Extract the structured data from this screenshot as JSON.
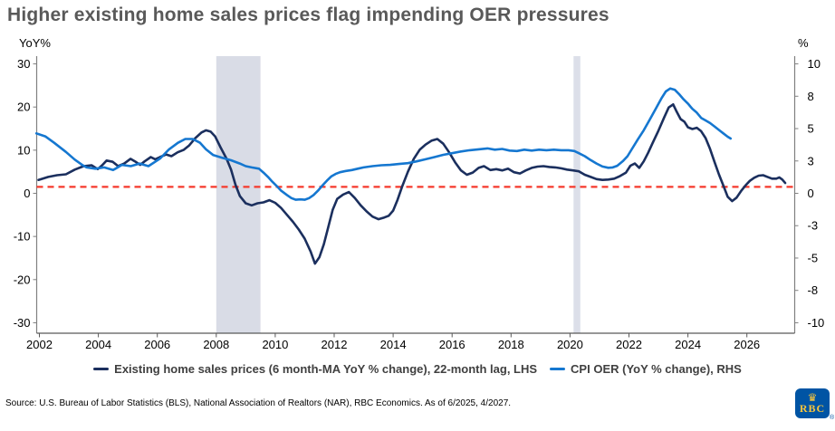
{
  "title": "Higher existing home sales prices flag impending OER pressures",
  "legend": [
    {
      "label": "Existing home sales prices (6 month-MA YoY % change), 22-month lag, LHS",
      "color": "#1b2f5e"
    },
    {
      "label": "CPI OER (YoY % change), RHS",
      "color": "#1577d0"
    }
  ],
  "source": "Source: U.S. Bureau of Labor Statistics (BLS), National Association of Realtors (NAR), RBC Economics. As of 6/2025, 4/2027.",
  "logo": {
    "crest_icon": "♛",
    "text": "RBC",
    "registered": "®"
  },
  "chart_data": {
    "type": "line",
    "title": "Higher existing home sales prices flag impending OER pressures",
    "grid": false,
    "x_axis": {
      "range": [
        2001.9,
        2027.5
      ],
      "tick_years": [
        2002,
        2004,
        2006,
        2008,
        2010,
        2012,
        2014,
        2016,
        2018,
        2020,
        2022,
        2024,
        2026
      ]
    },
    "left_axis": {
      "label": "YoY%",
      "range": [
        -30,
        30
      ],
      "ticks": [
        30,
        20,
        10,
        0,
        -10,
        -20,
        -30
      ]
    },
    "right_axis": {
      "label": "%",
      "range": [
        -10,
        10
      ],
      "tick_values": [
        10,
        7.5,
        5,
        2.5,
        0,
        -2.5,
        -5,
        -7.5,
        -10
      ],
      "tick_labels": [
        "10",
        "8",
        "5",
        "3",
        "0",
        "-3",
        "-5",
        "-8",
        "-10"
      ]
    },
    "reference_line": {
      "value_rhs": 0.5,
      "value_lhs": 1.5,
      "color": "#f5392c",
      "style": "dashed"
    },
    "recession_bands": [
      {
        "start": 2008.0,
        "end": 2009.5,
        "color": "#d9dce6"
      },
      {
        "start": 2020.12,
        "end": 2020.35,
        "color": "#dcdfe9"
      }
    ],
    "series": [
      {
        "name": "Existing home sales prices (6 month-MA YoY % change), 22-month lag, LHS",
        "axis": "left",
        "color": "#1b2f5e",
        "points": [
          [
            2001.97,
            3.1
          ],
          [
            2002.3,
            3.8
          ],
          [
            2002.6,
            4.2
          ],
          [
            2002.9,
            4.4
          ],
          [
            2003.2,
            5.5
          ],
          [
            2003.5,
            6.3
          ],
          [
            2003.77,
            6.5
          ],
          [
            2003.98,
            5.6
          ],
          [
            2004.13,
            6.5
          ],
          [
            2004.28,
            7.6
          ],
          [
            2004.49,
            7.3
          ],
          [
            2004.67,
            6.3
          ],
          [
            2004.88,
            6.9
          ],
          [
            2005.09,
            8.0
          ],
          [
            2005.24,
            7.4
          ],
          [
            2005.42,
            6.6
          ],
          [
            2005.57,
            7.4
          ],
          [
            2005.78,
            8.4
          ],
          [
            2005.93,
            7.9
          ],
          [
            2006.09,
            8.4
          ],
          [
            2006.3,
            9.0
          ],
          [
            2006.48,
            8.6
          ],
          [
            2006.69,
            9.5
          ],
          [
            2006.9,
            10.1
          ],
          [
            2007.08,
            11.1
          ],
          [
            2007.29,
            12.8
          ],
          [
            2007.5,
            14.1
          ],
          [
            2007.65,
            14.6
          ],
          [
            2007.81,
            14.3
          ],
          [
            2007.96,
            13.2
          ],
          [
            2008.14,
            10.7
          ],
          [
            2008.35,
            8.0
          ],
          [
            2008.5,
            5.5
          ],
          [
            2008.65,
            2.0
          ],
          [
            2008.8,
            -0.6
          ],
          [
            2009.0,
            -2.3
          ],
          [
            2009.2,
            -2.8
          ],
          [
            2009.4,
            -2.3
          ],
          [
            2009.6,
            -2.1
          ],
          [
            2009.8,
            -1.6
          ],
          [
            2010.0,
            -2.2
          ],
          [
            2010.2,
            -3.4
          ],
          [
            2010.4,
            -5.0
          ],
          [
            2010.6,
            -6.6
          ],
          [
            2010.8,
            -8.4
          ],
          [
            2011.0,
            -10.5
          ],
          [
            2011.2,
            -13.5
          ],
          [
            2011.35,
            -16.3
          ],
          [
            2011.5,
            -14.8
          ],
          [
            2011.65,
            -11.8
          ],
          [
            2011.8,
            -7.8
          ],
          [
            2011.95,
            -3.8
          ],
          [
            2012.1,
            -1.3
          ],
          [
            2012.3,
            -0.3
          ],
          [
            2012.5,
            0.3
          ],
          [
            2012.7,
            -1.1
          ],
          [
            2012.9,
            -2.8
          ],
          [
            2013.1,
            -4.2
          ],
          [
            2013.3,
            -5.4
          ],
          [
            2013.5,
            -6.0
          ],
          [
            2013.7,
            -5.6
          ],
          [
            2013.85,
            -5.2
          ],
          [
            2014.0,
            -4.0
          ],
          [
            2014.15,
            -1.5
          ],
          [
            2014.3,
            1.5
          ],
          [
            2014.5,
            5.0
          ],
          [
            2014.7,
            8.0
          ],
          [
            2014.9,
            10.1
          ],
          [
            2015.1,
            11.3
          ],
          [
            2015.3,
            12.2
          ],
          [
            2015.5,
            12.6
          ],
          [
            2015.7,
            11.5
          ],
          [
            2015.9,
            9.5
          ],
          [
            2016.1,
            7.2
          ],
          [
            2016.3,
            5.3
          ],
          [
            2016.5,
            4.3
          ],
          [
            2016.7,
            4.8
          ],
          [
            2016.9,
            5.9
          ],
          [
            2017.08,
            6.3
          ],
          [
            2017.3,
            5.4
          ],
          [
            2017.5,
            5.6
          ],
          [
            2017.7,
            5.3
          ],
          [
            2017.9,
            5.7
          ],
          [
            2018.1,
            4.9
          ],
          [
            2018.3,
            4.6
          ],
          [
            2018.5,
            5.3
          ],
          [
            2018.7,
            5.9
          ],
          [
            2018.9,
            6.2
          ],
          [
            2019.1,
            6.3
          ],
          [
            2019.3,
            6.1
          ],
          [
            2019.5,
            6.0
          ],
          [
            2019.7,
            5.8
          ],
          [
            2019.9,
            5.5
          ],
          [
            2020.1,
            5.3
          ],
          [
            2020.3,
            5.1
          ],
          [
            2020.5,
            4.3
          ],
          [
            2020.7,
            3.8
          ],
          [
            2020.9,
            3.3
          ],
          [
            2021.1,
            3.1
          ],
          [
            2021.3,
            3.2
          ],
          [
            2021.5,
            3.4
          ],
          [
            2021.7,
            4.0
          ],
          [
            2021.9,
            4.8
          ],
          [
            2022.05,
            6.4
          ],
          [
            2022.2,
            6.9
          ],
          [
            2022.35,
            5.9
          ],
          [
            2022.5,
            7.4
          ],
          [
            2022.65,
            9.4
          ],
          [
            2022.8,
            11.6
          ],
          [
            2023.0,
            14.5
          ],
          [
            2023.2,
            17.7
          ],
          [
            2023.35,
            19.9
          ],
          [
            2023.5,
            20.6
          ],
          [
            2023.62,
            18.9
          ],
          [
            2023.75,
            17.2
          ],
          [
            2023.88,
            16.6
          ],
          [
            2024.0,
            15.3
          ],
          [
            2024.15,
            14.9
          ],
          [
            2024.3,
            15.2
          ],
          [
            2024.45,
            14.4
          ],
          [
            2024.6,
            12.8
          ],
          [
            2024.75,
            10.3
          ],
          [
            2024.9,
            7.3
          ],
          [
            2025.05,
            4.4
          ],
          [
            2025.2,
            1.8
          ],
          [
            2025.35,
            -0.8
          ],
          [
            2025.5,
            -1.8
          ],
          [
            2025.65,
            -1.0
          ],
          [
            2025.8,
            0.5
          ],
          [
            2025.95,
            1.8
          ],
          [
            2026.1,
            2.9
          ],
          [
            2026.25,
            3.6
          ],
          [
            2026.4,
            4.1
          ],
          [
            2026.55,
            4.2
          ],
          [
            2026.7,
            3.8
          ],
          [
            2026.85,
            3.4
          ],
          [
            2027.0,
            3.4
          ],
          [
            2027.1,
            3.7
          ],
          [
            2027.2,
            3.2
          ],
          [
            2027.3,
            2.4
          ]
        ]
      },
      {
        "name": "CPI OER (YoY % change), RHS",
        "axis": "right",
        "color": "#1577d0",
        "points": [
          [
            2001.9,
            4.63
          ],
          [
            2002.2,
            4.4
          ],
          [
            2002.5,
            3.9
          ],
          [
            2002.9,
            3.2
          ],
          [
            2003.2,
            2.6
          ],
          [
            2003.45,
            2.2
          ],
          [
            2003.6,
            2.0
          ],
          [
            2003.9,
            1.9
          ],
          [
            2004.2,
            2.0
          ],
          [
            2004.5,
            1.8
          ],
          [
            2004.8,
            2.2
          ],
          [
            2005.1,
            2.1
          ],
          [
            2005.4,
            2.3
          ],
          [
            2005.7,
            2.1
          ],
          [
            2006.1,
            2.7
          ],
          [
            2006.4,
            3.4
          ],
          [
            2006.7,
            3.9
          ],
          [
            2006.95,
            4.2
          ],
          [
            2007.2,
            4.2
          ],
          [
            2007.45,
            3.9
          ],
          [
            2007.65,
            3.4
          ],
          [
            2007.9,
            2.95
          ],
          [
            2008.2,
            2.75
          ],
          [
            2008.5,
            2.55
          ],
          [
            2008.8,
            2.3
          ],
          [
            2009.0,
            2.1
          ],
          [
            2009.2,
            2.0
          ],
          [
            2009.45,
            1.9
          ],
          [
            2009.6,
            1.6
          ],
          [
            2009.75,
            1.27
          ],
          [
            2009.9,
            0.9
          ],
          [
            2010.05,
            0.57
          ],
          [
            2010.2,
            0.2
          ],
          [
            2010.4,
            -0.13
          ],
          [
            2010.55,
            -0.37
          ],
          [
            2010.7,
            -0.5
          ],
          [
            2010.85,
            -0.47
          ],
          [
            2011.0,
            -0.5
          ],
          [
            2011.15,
            -0.37
          ],
          [
            2011.3,
            -0.13
          ],
          [
            2011.45,
            0.2
          ],
          [
            2011.6,
            0.6
          ],
          [
            2011.75,
            0.97
          ],
          [
            2011.9,
            1.3
          ],
          [
            2012.05,
            1.5
          ],
          [
            2012.2,
            1.63
          ],
          [
            2012.4,
            1.73
          ],
          [
            2012.6,
            1.8
          ],
          [
            2012.8,
            1.9
          ],
          [
            2013.0,
            2.0
          ],
          [
            2013.3,
            2.1
          ],
          [
            2013.6,
            2.17
          ],
          [
            2013.9,
            2.2
          ],
          [
            2014.2,
            2.27
          ],
          [
            2014.5,
            2.33
          ],
          [
            2014.8,
            2.47
          ],
          [
            2015.1,
            2.63
          ],
          [
            2015.4,
            2.8
          ],
          [
            2015.7,
            2.97
          ],
          [
            2016.0,
            3.1
          ],
          [
            2016.3,
            3.23
          ],
          [
            2016.6,
            3.33
          ],
          [
            2016.9,
            3.4
          ],
          [
            2017.2,
            3.47
          ],
          [
            2017.45,
            3.37
          ],
          [
            2017.7,
            3.43
          ],
          [
            2017.95,
            3.3
          ],
          [
            2018.2,
            3.27
          ],
          [
            2018.45,
            3.37
          ],
          [
            2018.7,
            3.3
          ],
          [
            2018.95,
            3.37
          ],
          [
            2019.2,
            3.33
          ],
          [
            2019.45,
            3.37
          ],
          [
            2019.7,
            3.33
          ],
          [
            2019.95,
            3.33
          ],
          [
            2020.15,
            3.27
          ],
          [
            2020.3,
            3.1
          ],
          [
            2020.5,
            2.87
          ],
          [
            2020.7,
            2.57
          ],
          [
            2020.9,
            2.3
          ],
          [
            2021.1,
            2.07
          ],
          [
            2021.3,
            1.97
          ],
          [
            2021.45,
            2.0
          ],
          [
            2021.6,
            2.13
          ],
          [
            2021.8,
            2.5
          ],
          [
            2021.95,
            2.87
          ],
          [
            2022.1,
            3.43
          ],
          [
            2022.3,
            4.17
          ],
          [
            2022.5,
            4.87
          ],
          [
            2022.7,
            5.67
          ],
          [
            2022.9,
            6.5
          ],
          [
            2023.1,
            7.33
          ],
          [
            2023.25,
            7.87
          ],
          [
            2023.4,
            8.1
          ],
          [
            2023.55,
            8.0
          ],
          [
            2023.7,
            7.67
          ],
          [
            2023.85,
            7.27
          ],
          [
            2024.0,
            6.93
          ],
          [
            2024.15,
            6.53
          ],
          [
            2024.3,
            6.23
          ],
          [
            2024.45,
            5.83
          ],
          [
            2024.6,
            5.63
          ],
          [
            2024.75,
            5.43
          ],
          [
            2024.9,
            5.17
          ],
          [
            2025.05,
            4.9
          ],
          [
            2025.2,
            4.63
          ],
          [
            2025.35,
            4.37
          ],
          [
            2025.45,
            4.23
          ]
        ]
      }
    ]
  }
}
